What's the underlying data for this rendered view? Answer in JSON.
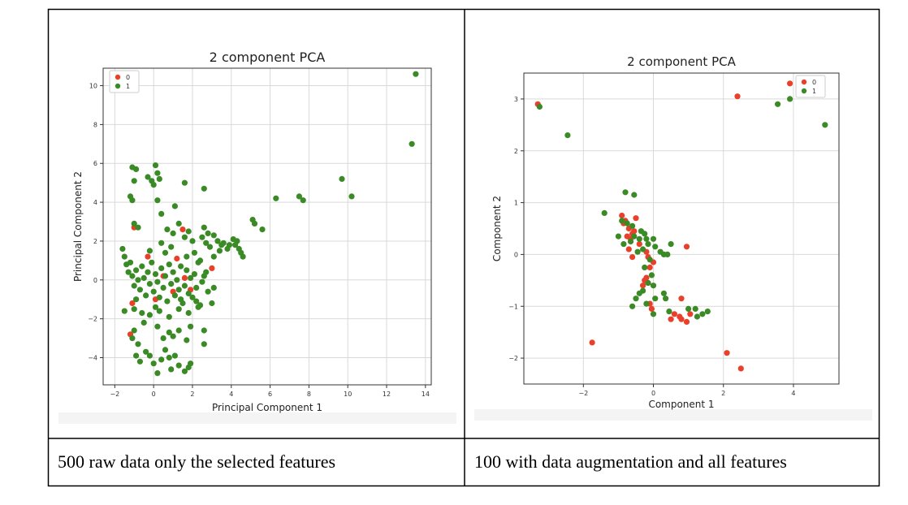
{
  "table": {
    "captions": [
      "500 raw data only the selected features",
      "100 with data augmentation and all features"
    ]
  },
  "colors": {
    "class0": "#e8402a",
    "class1": "#3a8a26",
    "grid": "#d9d9d9",
    "axis": "#333333"
  },
  "chart_data": [
    {
      "type": "scatter",
      "title": "2 component PCA",
      "xlabel": "Principal Component 1",
      "ylabel": "Principal Component 2",
      "xlim": [
        -2.6,
        14.3
      ],
      "ylim": [
        -5.4,
        10.9
      ],
      "xticks": [
        -2,
        0,
        2,
        4,
        6,
        8,
        10,
        12,
        14
      ],
      "yticks": [
        -4,
        -2,
        0,
        2,
        4,
        6,
        8,
        10
      ],
      "grid": true,
      "legend_position": "top-left",
      "series": [
        {
          "name": "0",
          "color": "#e8402a",
          "points": [
            [
              -1.1,
              -1.2
            ],
            [
              -1.2,
              -2.8
            ],
            [
              -1.0,
              2.7
            ],
            [
              -0.3,
              1.2
            ],
            [
              0.5,
              0.2
            ],
            [
              1.0,
              -0.6
            ],
            [
              1.6,
              0.1
            ],
            [
              1.2,
              1.1
            ],
            [
              1.9,
              -0.5
            ],
            [
              3.0,
              0.6
            ],
            [
              1.5,
              2.6
            ],
            [
              0.1,
              -1.0
            ]
          ]
        },
        {
          "name": "1",
          "color": "#3a8a26",
          "points": [
            [
              -1.1,
              5.8
            ],
            [
              -0.9,
              5.7
            ],
            [
              -1.0,
              5.1
            ],
            [
              -1.2,
              4.3
            ],
            [
              -1.1,
              4.1
            ],
            [
              -1.0,
              2.9
            ],
            [
              -0.8,
              2.7
            ],
            [
              -0.3,
              5.3
            ],
            [
              -0.1,
              5.1
            ],
            [
              0.1,
              5.9
            ],
            [
              0.2,
              5.5
            ],
            [
              0.3,
              5.2
            ],
            [
              0.0,
              4.9
            ],
            [
              1.6,
              5.0
            ],
            [
              2.6,
              4.7
            ],
            [
              0.2,
              4.1
            ],
            [
              1.1,
              3.8
            ],
            [
              0.4,
              3.4
            ],
            [
              1.3,
              2.9
            ],
            [
              0.7,
              2.6
            ],
            [
              1.0,
              2.4
            ],
            [
              1.8,
              2.5
            ],
            [
              1.6,
              2.2
            ],
            [
              2.0,
              2.0
            ],
            [
              2.6,
              2.7
            ],
            [
              2.8,
              2.4
            ],
            [
              3.1,
              2.3
            ],
            [
              3.3,
              2.0
            ],
            [
              3.6,
              1.9
            ],
            [
              3.9,
              1.8
            ],
            [
              4.1,
              2.1
            ],
            [
              4.3,
              2.0
            ],
            [
              3.8,
              1.6
            ],
            [
              4.4,
              1.6
            ],
            [
              4.5,
              1.4
            ],
            [
              4.6,
              1.2
            ],
            [
              3.4,
              1.5
            ],
            [
              2.9,
              1.7
            ],
            [
              3.1,
              1.2
            ],
            [
              3.5,
              1.8
            ],
            [
              4.2,
              1.8
            ],
            [
              2.5,
              2.2
            ],
            [
              2.7,
              1.9
            ],
            [
              5.1,
              3.1
            ],
            [
              5.2,
              2.9
            ],
            [
              5.6,
              2.6
            ],
            [
              6.3,
              4.2
            ],
            [
              7.5,
              4.3
            ],
            [
              7.7,
              4.1
            ],
            [
              9.7,
              5.2
            ],
            [
              10.2,
              4.3
            ],
            [
              13.3,
              7.0
            ],
            [
              13.5,
              10.6
            ],
            [
              -1.6,
              1.6
            ],
            [
              -1.5,
              1.2
            ],
            [
              -1.4,
              0.8
            ],
            [
              -1.3,
              0.4
            ],
            [
              -1.2,
              0.9
            ],
            [
              -1.1,
              0.2
            ],
            [
              -1.0,
              -0.3
            ],
            [
              -0.9,
              0.5
            ],
            [
              -0.8,
              0.0
            ],
            [
              -0.7,
              -0.5
            ],
            [
              -0.6,
              0.7
            ],
            [
              -0.5,
              0.1
            ],
            [
              -0.4,
              -0.8
            ],
            [
              -0.3,
              0.4
            ],
            [
              -0.2,
              -0.2
            ],
            [
              -0.1,
              0.9
            ],
            [
              0.0,
              -0.6
            ],
            [
              0.1,
              0.3
            ],
            [
              0.2,
              -0.1
            ],
            [
              0.3,
              -0.9
            ],
            [
              0.4,
              0.6
            ],
            [
              0.5,
              -0.4
            ],
            [
              0.6,
              0.2
            ],
            [
              0.7,
              -1.1
            ],
            [
              0.8,
              0.8
            ],
            [
              0.9,
              -0.2
            ],
            [
              1.0,
              0.4
            ],
            [
              1.1,
              -0.8
            ],
            [
              1.2,
              0.0
            ],
            [
              1.3,
              -0.5
            ],
            [
              1.4,
              0.7
            ],
            [
              1.5,
              -1.2
            ],
            [
              1.6,
              -0.3
            ],
            [
              1.7,
              0.5
            ],
            [
              1.8,
              -0.7
            ],
            [
              1.9,
              0.1
            ],
            [
              2.0,
              -0.9
            ],
            [
              2.1,
              0.3
            ],
            [
              2.2,
              -0.4
            ],
            [
              2.3,
              0.9
            ],
            [
              2.4,
              -1.3
            ],
            [
              2.5,
              -0.1
            ],
            [
              2.6,
              0.2
            ],
            [
              2.8,
              -0.6
            ],
            [
              3.0,
              -1.2
            ],
            [
              -1.5,
              -1.6
            ],
            [
              -1.0,
              -1.5
            ],
            [
              -0.6,
              -1.7
            ],
            [
              -0.2,
              -1.8
            ],
            [
              0.3,
              -1.6
            ],
            [
              0.8,
              -1.9
            ],
            [
              1.3,
              -1.5
            ],
            [
              1.8,
              -1.7
            ],
            [
              2.3,
              -1.4
            ],
            [
              -1.1,
              -3.0
            ],
            [
              -1.0,
              -2.6
            ],
            [
              -0.8,
              -3.3
            ],
            [
              -0.9,
              -3.9
            ],
            [
              -0.7,
              -4.2
            ],
            [
              -0.4,
              -3.7
            ],
            [
              -0.2,
              -3.9
            ],
            [
              0.0,
              -4.3
            ],
            [
              0.2,
              -4.8
            ],
            [
              0.4,
              -4.1
            ],
            [
              0.6,
              -3.6
            ],
            [
              0.8,
              -4.0
            ],
            [
              0.9,
              -4.6
            ],
            [
              1.1,
              -3.9
            ],
            [
              1.3,
              -4.4
            ],
            [
              1.6,
              -4.7
            ],
            [
              1.8,
              -4.5
            ],
            [
              1.9,
              -4.3
            ],
            [
              0.5,
              -3.0
            ],
            [
              0.8,
              -2.7
            ],
            [
              1.0,
              -2.9
            ],
            [
              1.3,
              -2.6
            ],
            [
              1.7,
              -3.1
            ],
            [
              2.6,
              -3.3
            ],
            [
              2.6,
              -2.6
            ],
            [
              0.2,
              -2.4
            ],
            [
              -0.5,
              -2.2
            ],
            [
              1.9,
              -2.4
            ],
            [
              0.4,
              1.9
            ],
            [
              0.9,
              1.7
            ],
            [
              2.1,
              1.4
            ],
            [
              2.4,
              1.0
            ],
            [
              1.7,
              1.2
            ],
            [
              2.7,
              0.4
            ],
            [
              3.1,
              -0.4
            ],
            [
              0.6,
              1.4
            ],
            [
              -0.2,
              1.5
            ],
            [
              0.1,
              -1.4
            ],
            [
              -0.9,
              -1.0
            ],
            [
              1.4,
              -1.0
            ],
            [
              2.2,
              -1.1
            ]
          ]
        }
      ]
    },
    {
      "type": "scatter",
      "title": "2 component PCA",
      "xlabel": "Component 1",
      "ylabel": "Component 2",
      "xlim": [
        -3.7,
        5.3
      ],
      "ylim": [
        -2.5,
        3.5
      ],
      "xticks": [
        -2,
        0,
        2,
        4
      ],
      "yticks": [
        -2,
        -1,
        0,
        1,
        2,
        3
      ],
      "grid": true,
      "legend_position": "top-right",
      "series": [
        {
          "name": "0",
          "color": "#e8402a",
          "points": [
            [
              -3.3,
              2.9
            ],
            [
              2.4,
              3.05
            ],
            [
              3.9,
              3.3
            ],
            [
              -1.75,
              -1.7
            ],
            [
              2.1,
              -1.9
            ],
            [
              2.5,
              -2.2
            ],
            [
              -0.9,
              0.75
            ],
            [
              -0.8,
              0.65
            ],
            [
              -0.7,
              0.5
            ],
            [
              -0.6,
              0.4
            ],
            [
              -0.65,
              0.3
            ],
            [
              -0.75,
              0.35
            ],
            [
              -0.55,
              0.45
            ],
            [
              -0.85,
              0.6
            ],
            [
              -0.5,
              0.7
            ],
            [
              -0.7,
              0.1
            ],
            [
              -0.2,
              0.05
            ],
            [
              -0.15,
              -0.05
            ],
            [
              -0.1,
              -0.25
            ],
            [
              -0.2,
              -0.45
            ],
            [
              -0.25,
              -0.5
            ],
            [
              -0.15,
              -0.55
            ],
            [
              -0.3,
              -0.6
            ],
            [
              -0.1,
              -0.95
            ],
            [
              0.95,
              0.15
            ],
            [
              0.8,
              -0.85
            ],
            [
              0.5,
              -1.25
            ],
            [
              0.75,
              -1.2
            ],
            [
              0.95,
              -1.3
            ],
            [
              1.05,
              -1.15
            ],
            [
              0.6,
              -1.15
            ],
            [
              0.8,
              -1.25
            ],
            [
              -0.6,
              -0.05
            ],
            [
              -0.4,
              0.2
            ],
            [
              0.0,
              -0.15
            ],
            [
              -0.05,
              -1.05
            ]
          ]
        },
        {
          "name": "1",
          "color": "#3a8a26",
          "points": [
            [
              -3.25,
              2.85
            ],
            [
              -2.45,
              2.3
            ],
            [
              3.55,
              2.9
            ],
            [
              3.9,
              3.0
            ],
            [
              4.9,
              2.5
            ],
            [
              -1.4,
              0.8
            ],
            [
              -0.8,
              1.2
            ],
            [
              -0.55,
              1.15
            ],
            [
              -0.9,
              0.65
            ],
            [
              -0.75,
              0.6
            ],
            [
              -0.6,
              0.55
            ],
            [
              -1.0,
              0.35
            ],
            [
              -0.85,
              0.2
            ],
            [
              -0.65,
              0.25
            ],
            [
              -0.55,
              0.35
            ],
            [
              -0.4,
              0.3
            ],
            [
              -0.35,
              0.45
            ],
            [
              -0.25,
              0.4
            ],
            [
              -0.2,
              0.3
            ],
            [
              -0.15,
              0.2
            ],
            [
              0.0,
              0.3
            ],
            [
              0.05,
              0.15
            ],
            [
              0.2,
              0.05
            ],
            [
              0.3,
              0.0
            ],
            [
              0.4,
              0.0
            ],
            [
              0.5,
              0.2
            ],
            [
              -0.3,
              0.1
            ],
            [
              -0.1,
              -0.1
            ],
            [
              -0.05,
              -0.4
            ],
            [
              -0.15,
              -0.55
            ],
            [
              0.0,
              -0.6
            ],
            [
              -0.3,
              -0.7
            ],
            [
              -0.4,
              -0.75
            ],
            [
              -0.5,
              -0.85
            ],
            [
              -0.2,
              -0.95
            ],
            [
              -0.6,
              -1.0
            ],
            [
              0.05,
              -0.85
            ],
            [
              0.0,
              -1.15
            ],
            [
              0.3,
              -0.75
            ],
            [
              0.35,
              -0.85
            ],
            [
              1.0,
              -1.05
            ],
            [
              1.2,
              -1.05
            ],
            [
              1.25,
              -1.2
            ],
            [
              1.4,
              -1.15
            ],
            [
              1.55,
              -1.1
            ],
            [
              0.45,
              -1.1
            ],
            [
              -0.45,
              0.05
            ],
            [
              -0.25,
              -0.25
            ]
          ]
        }
      ]
    }
  ]
}
